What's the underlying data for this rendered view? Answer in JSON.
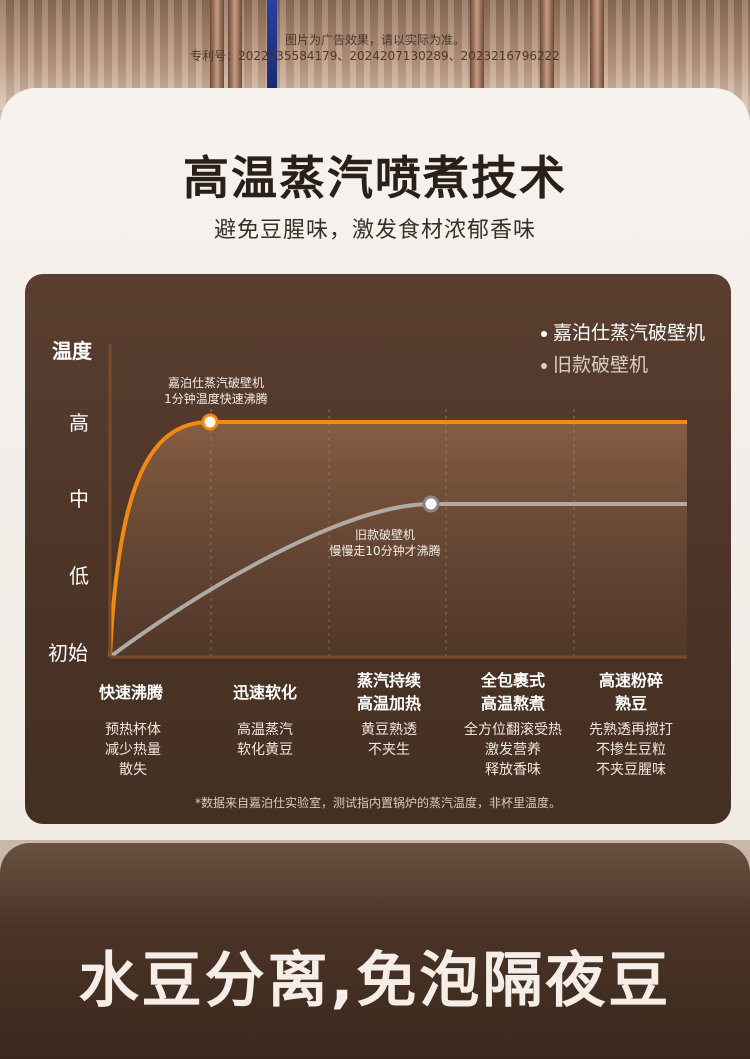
{
  "disclaimer": {
    "line1": "图片为广告效果，请以实际为准。",
    "line2": "专利号：2022235584179、2024207130289、2023216796222"
  },
  "title": "高温蒸汽喷煮技术",
  "subtitle": "避免豆腥味，激发食材浓郁香味",
  "legend": {
    "new": "嘉泊仕蒸汽破壁机",
    "old": "旧款破壁机"
  },
  "colors": {
    "new_line": "#f08a14",
    "old_line": "#b0aaa6",
    "panel_bg": "#4b3326"
  },
  "chart_data": {
    "type": "line",
    "ylabel": "温度",
    "y_levels": [
      "初始",
      "低",
      "中",
      "高"
    ],
    "series": [
      {
        "name": "嘉泊仕蒸汽破壁机",
        "color": "#f08a14",
        "reaches": "高",
        "at_stage": 1
      },
      {
        "name": "旧款破壁机",
        "color": "#b0aaa6",
        "reaches": "中",
        "at_stage": 3
      }
    ],
    "annotations": [
      {
        "series": "嘉泊仕蒸汽破壁机",
        "line1": "嘉泊仕蒸汽破壁机",
        "line2": "1分钟温度快速沸腾"
      },
      {
        "series": "旧款破壁机",
        "line1": "旧款破壁机",
        "line2": "慢慢走10分钟才沸腾"
      }
    ]
  },
  "stages": [
    {
      "title": [
        "快速沸腾"
      ],
      "desc": [
        "预热杯体",
        "减少热量",
        "散失"
      ]
    },
    {
      "title": [
        "迅速软化"
      ],
      "desc": [
        "高温蒸汽",
        "软化黄豆"
      ]
    },
    {
      "title": [
        "蒸汽持续",
        "高温加热"
      ],
      "desc": [
        "黄豆熟透",
        "不夹生"
      ]
    },
    {
      "title": [
        "全包裹式",
        "高温熬煮"
      ],
      "desc": [
        "全方位翻滚受热",
        "激发营养",
        "释放香味"
      ]
    },
    {
      "title": [
        "高速粉碎",
        "熟豆"
      ],
      "desc": [
        "先熟透再搅打",
        "不掺生豆粒",
        "不夹豆腥味"
      ]
    }
  ],
  "footnote": "*数据来自嘉泊仕实验室，测试指内置锅炉的蒸汽温度，非杯里温度。",
  "bottom_title": "水豆分离,免泡隔夜豆"
}
